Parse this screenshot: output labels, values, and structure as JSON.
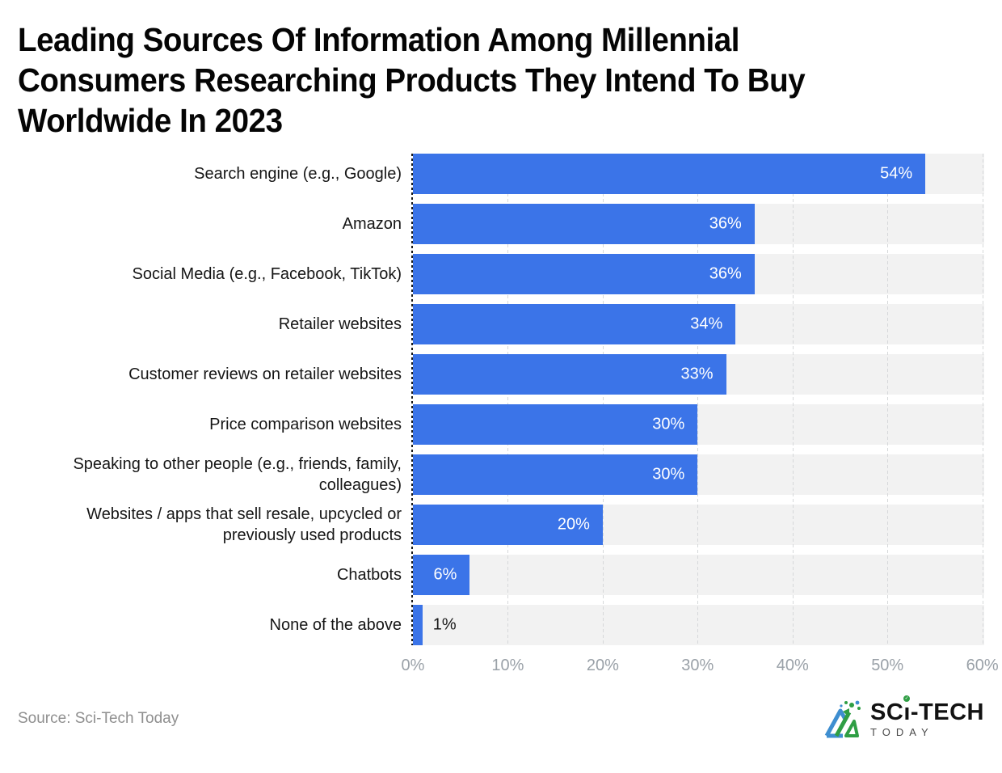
{
  "title": {
    "lines": [
      "Leading Sources Of Information Among Millennial",
      "Consumers Researching Products They Intend To Buy",
      "Worldwide In 2023"
    ]
  },
  "chart_data": {
    "type": "bar",
    "orientation": "horizontal",
    "title": "Leading Sources Of Information Among Millennial Consumers Researching Products They Intend To Buy Worldwide In 2023",
    "xlabel": "",
    "ylabel": "",
    "xlim": [
      0,
      60.2
    ],
    "grid": "vertical-dashed",
    "legend": "none",
    "items": [
      {
        "label": "Search engine (e.g., Google)",
        "value": 54,
        "value_label": "54%"
      },
      {
        "label": "Amazon",
        "value": 36,
        "value_label": "36%"
      },
      {
        "label": "Social Media (e.g., Facebook, TikTok)",
        "value": 36,
        "value_label": "36%"
      },
      {
        "label": "Retailer websites",
        "value": 34,
        "value_label": "34%"
      },
      {
        "label": "Customer reviews on retailer websites",
        "value": 33,
        "value_label": "33%"
      },
      {
        "label": "Price comparison websites",
        "value": 30,
        "value_label": "30%"
      },
      {
        "label": "Speaking to other people (e.g., friends, family, colleagues)",
        "value": 30,
        "value_label": "30%"
      },
      {
        "label": "Websites / apps that sell resale, upcycled or previously used products",
        "value": 20,
        "value_label": "20%"
      },
      {
        "label": "Chatbots",
        "value": 6,
        "value_label": "6%"
      },
      {
        "label": "None of the above",
        "value": 1,
        "value_label": "1%"
      }
    ],
    "ticks": [
      {
        "value": 0,
        "label": "0%"
      },
      {
        "value": 10,
        "label": "10%"
      },
      {
        "value": 20,
        "label": "20%"
      },
      {
        "value": 30,
        "label": "30%"
      },
      {
        "value": 40,
        "label": "40%"
      },
      {
        "value": 50,
        "label": "50%"
      },
      {
        "value": 60,
        "label": "60%"
      }
    ]
  },
  "colors": {
    "bar": "#3B74E8",
    "band_background": "#F2F2F2",
    "grid_line": "#D6D8DA",
    "zero_axis": "#17181A",
    "tick_text": "#9AA1A8",
    "value_inside": "#FFFFFF",
    "value_outside": "#1A1A1A",
    "logo_blue": "#3E8ED0",
    "logo_green": "#2F9E44"
  },
  "footer": {
    "source": "Source: Sci-Tech Today",
    "logo_main": "SCi-TECH",
    "logo_main_prefix": "SC",
    "logo_main_suffix": "-TECH",
    "logo_sub": "TODAY",
    "logo_check": "✓"
  }
}
